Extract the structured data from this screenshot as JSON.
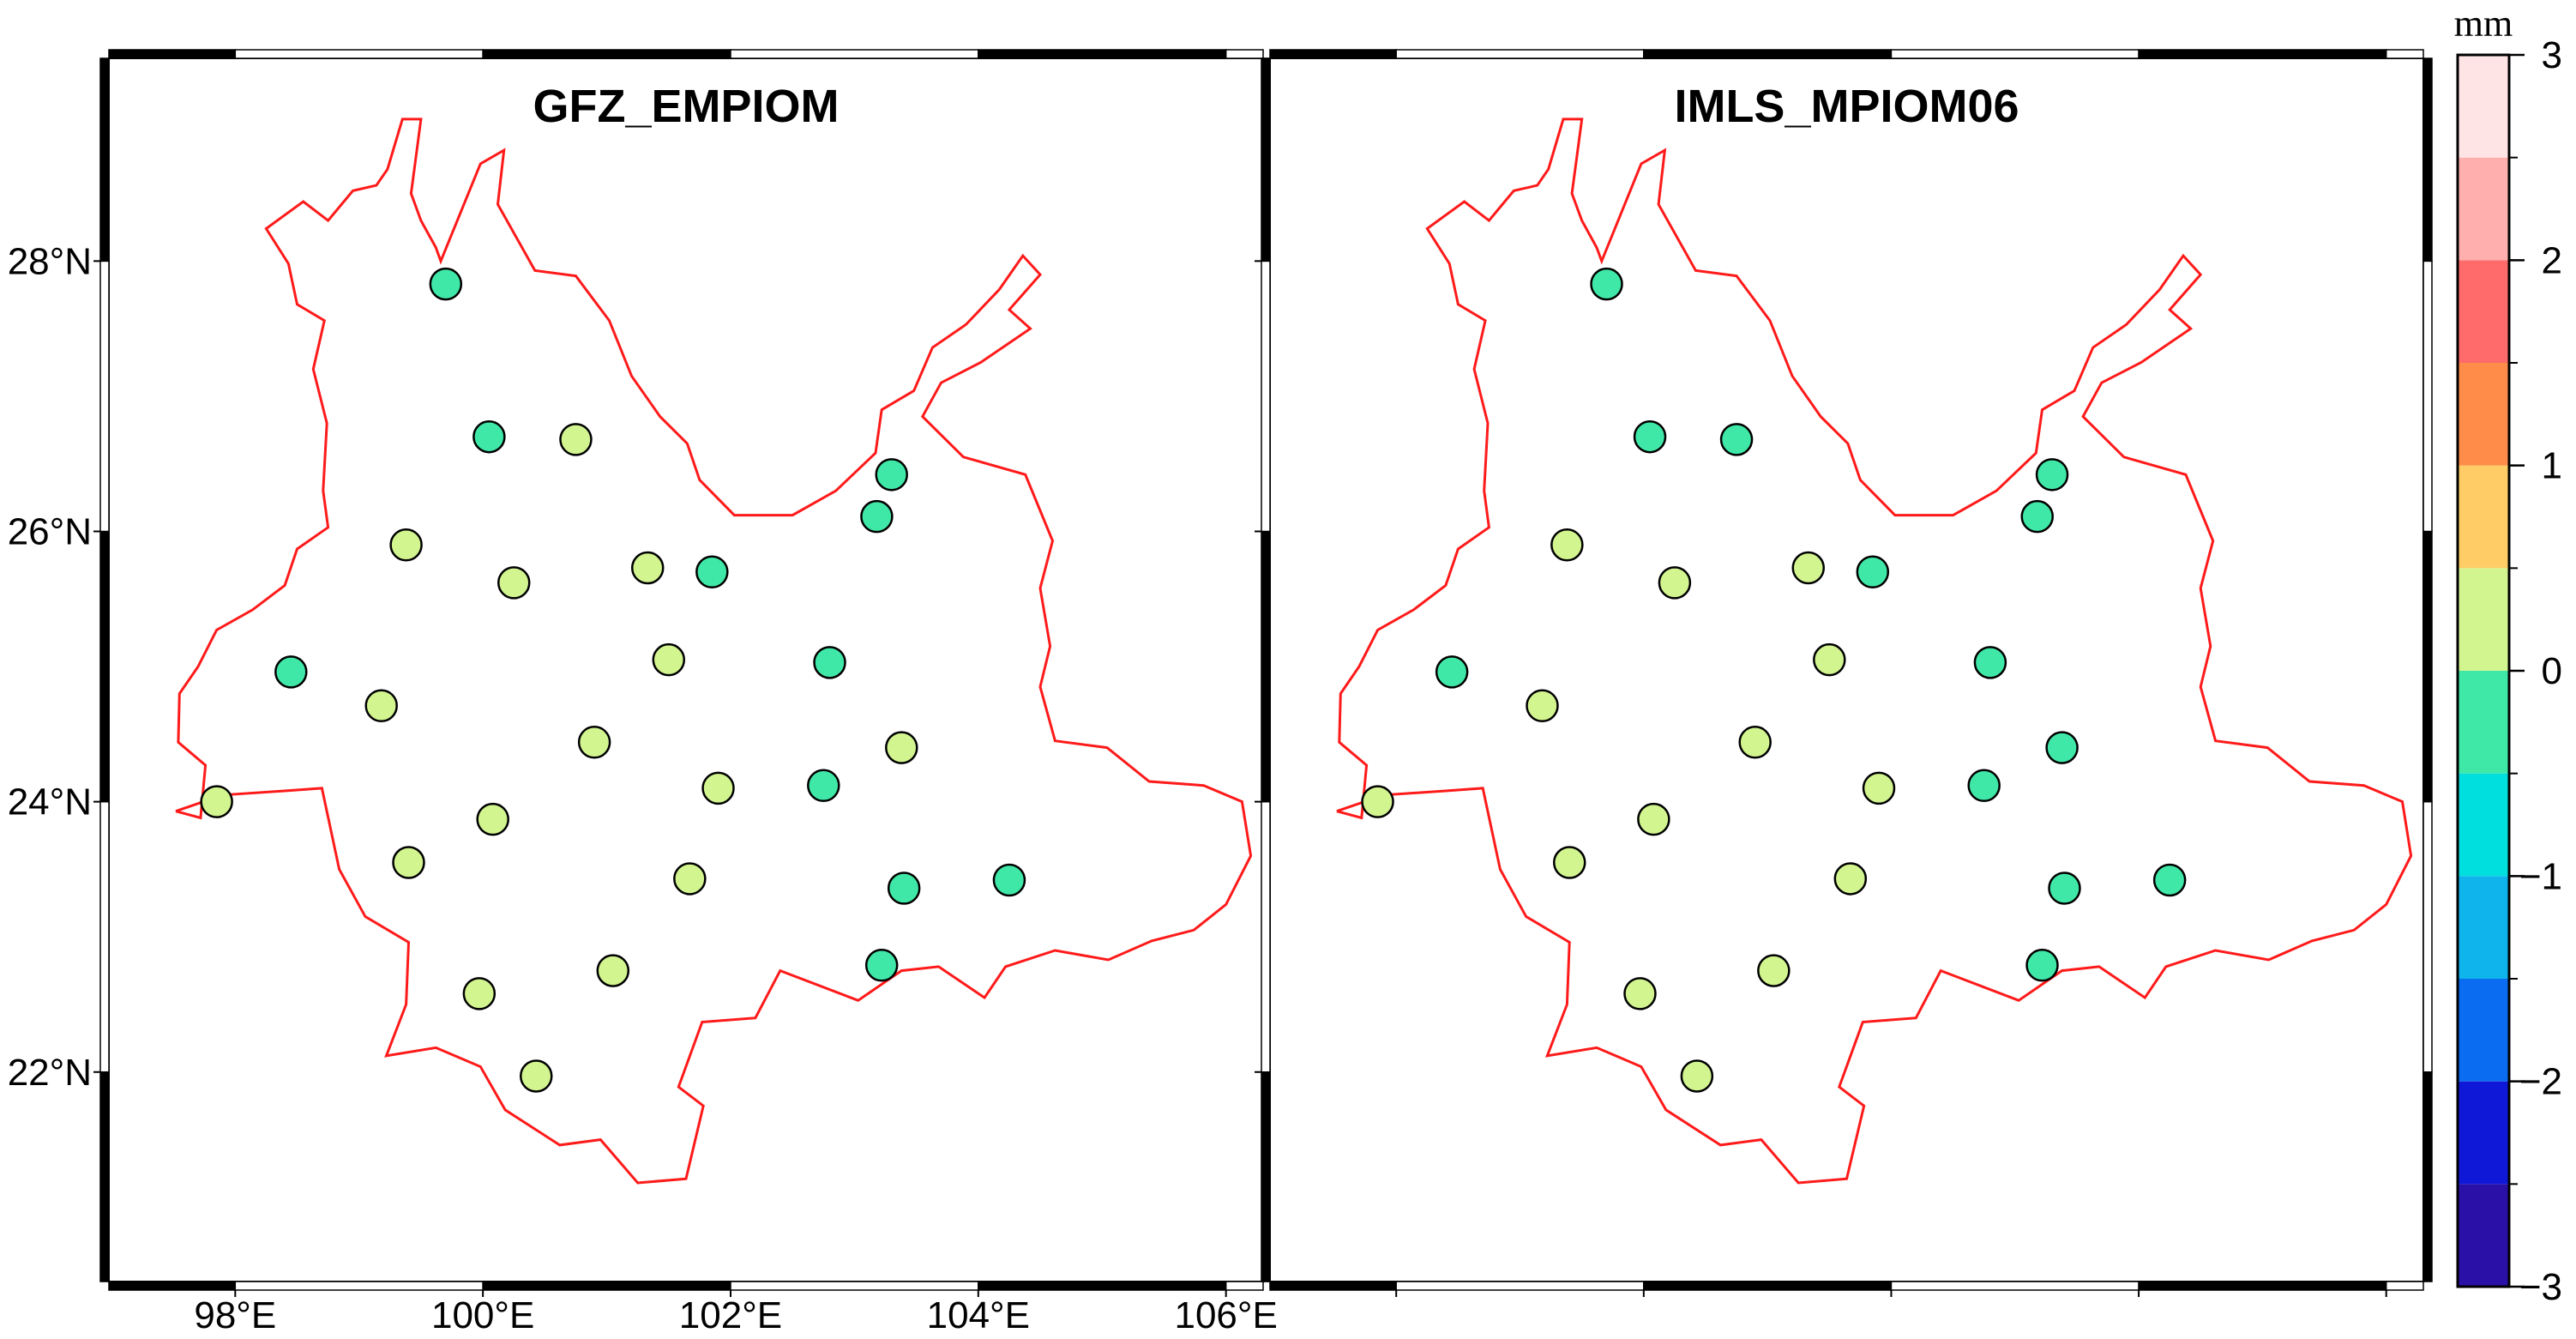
{
  "colors": {
    "border": "#ff1a1a",
    "frame_dark": "#000000",
    "frame_light": "#ffffff",
    "marker_outline": "#000000"
  },
  "maps": [
    {
      "id": "left",
      "title": "GFZ_EMPIOM",
      "show_lon_labels": true,
      "show_lat_labels": true
    },
    {
      "id": "right",
      "title": "IMLS_MPIOM06",
      "show_lon_labels": false,
      "show_lat_labels": false
    }
  ],
  "axes": {
    "lon_range": [
      96.98,
      106.3
    ],
    "lat_range": [
      20.45,
      29.5
    ],
    "lon_ticks": [
      {
        "value": 98,
        "label": "98°E"
      },
      {
        "value": 100,
        "label": "100°E"
      },
      {
        "value": 102,
        "label": "102°E"
      },
      {
        "value": 104,
        "label": "104°E"
      },
      {
        "value": 106,
        "label": "106°E"
      }
    ],
    "lat_ticks": [
      {
        "value": 22,
        "label": "22°N"
      },
      {
        "value": 24,
        "label": "24°N"
      },
      {
        "value": 26,
        "label": "26°N"
      },
      {
        "value": 28,
        "label": "28°N"
      }
    ]
  },
  "colorbar": {
    "unit": "mm",
    "range": [
      -3,
      3
    ],
    "labels": [
      {
        "value": 3,
        "text": "3"
      },
      {
        "value": 2,
        "text": "2"
      },
      {
        "value": 1,
        "text": "1"
      },
      {
        "value": 0,
        "text": "0"
      },
      {
        "value": -1,
        "text": "−1"
      },
      {
        "value": -2,
        "text": "−2"
      },
      {
        "value": -3,
        "text": "−3"
      }
    ],
    "bins": [
      {
        "from": -3.0,
        "to": -2.5,
        "color": "#2a10a6"
      },
      {
        "from": -2.5,
        "to": -2.0,
        "color": "#1018d8"
      },
      {
        "from": -2.0,
        "to": -1.5,
        "color": "#0a6cf0"
      },
      {
        "from": -1.5,
        "to": -1.0,
        "color": "#10b4ec"
      },
      {
        "from": -1.0,
        "to": -0.5,
        "color": "#00dede"
      },
      {
        "from": -0.5,
        "to": 0.0,
        "color": "#40e8a8"
      },
      {
        "from": 0.0,
        "to": 0.5,
        "color": "#d2f590"
      },
      {
        "from": 0.5,
        "to": 1.0,
        "color": "#ffcc66"
      },
      {
        "from": 1.0,
        "to": 1.5,
        "color": "#ff8c48"
      },
      {
        "from": 1.5,
        "to": 2.0,
        "color": "#ff6b6b"
      },
      {
        "from": 2.0,
        "to": 2.5,
        "color": "#ffb0ae"
      },
      {
        "from": 2.5,
        "to": 3.0,
        "color": "#ffe4e6"
      }
    ]
  },
  "chart_data": {
    "type": "scatter",
    "unit": "mm",
    "stations": [
      {
        "lon": 99.7,
        "lat": 27.83,
        "left": -0.3,
        "right": -0.3
      },
      {
        "lon": 100.05,
        "lat": 26.7,
        "left": -0.3,
        "right": -0.3
      },
      {
        "lon": 100.75,
        "lat": 26.68,
        "left": 0.3,
        "right": -0.3
      },
      {
        "lon": 103.3,
        "lat": 26.42,
        "left": -0.3,
        "right": -0.3
      },
      {
        "lon": 103.18,
        "lat": 26.11,
        "left": -0.3,
        "right": -0.3
      },
      {
        "lon": 99.38,
        "lat": 25.9,
        "left": 0.3,
        "right": 0.3
      },
      {
        "lon": 100.25,
        "lat": 25.62,
        "left": 0.3,
        "right": 0.3
      },
      {
        "lon": 101.33,
        "lat": 25.73,
        "left": 0.3,
        "right": 0.3
      },
      {
        "lon": 101.85,
        "lat": 25.7,
        "left": -0.3,
        "right": -0.3
      },
      {
        "lon": 98.45,
        "lat": 24.96,
        "left": -0.3,
        "right": -0.3
      },
      {
        "lon": 101.5,
        "lat": 25.05,
        "left": 0.3,
        "right": 0.3
      },
      {
        "lon": 102.8,
        "lat": 25.03,
        "left": -0.3,
        "right": -0.3
      },
      {
        "lon": 99.18,
        "lat": 24.71,
        "left": 0.3,
        "right": 0.3
      },
      {
        "lon": 100.9,
        "lat": 24.44,
        "left": 0.3,
        "right": 0.3
      },
      {
        "lon": 103.38,
        "lat": 24.4,
        "left": 0.3,
        "right": -0.3
      },
      {
        "lon": 97.85,
        "lat": 24.0,
        "left": 0.3,
        "right": 0.3
      },
      {
        "lon": 101.9,
        "lat": 24.1,
        "left": 0.3,
        "right": 0.3
      },
      {
        "lon": 102.75,
        "lat": 24.12,
        "left": -0.3,
        "right": -0.3
      },
      {
        "lon": 100.08,
        "lat": 23.87,
        "left": 0.3,
        "right": 0.3
      },
      {
        "lon": 99.4,
        "lat": 23.55,
        "left": 0.3,
        "right": 0.3
      },
      {
        "lon": 101.67,
        "lat": 23.43,
        "left": 0.3,
        "right": 0.3
      },
      {
        "lon": 103.4,
        "lat": 23.36,
        "left": -0.3,
        "right": -0.3
      },
      {
        "lon": 104.25,
        "lat": 23.42,
        "left": -0.3,
        "right": -0.3
      },
      {
        "lon": 101.05,
        "lat": 22.75,
        "left": 0.3,
        "right": 0.3
      },
      {
        "lon": 103.22,
        "lat": 22.79,
        "left": -0.3,
        "right": -0.3
      },
      {
        "lon": 99.97,
        "lat": 22.58,
        "left": 0.3,
        "right": 0.3
      },
      {
        "lon": 100.43,
        "lat": 21.97,
        "left": 0.3,
        "right": 0.3
      }
    ]
  },
  "province_outline": [
    [
      97.52,
      23.93
    ],
    [
      97.72,
      23.88
    ],
    [
      97.76,
      24.27
    ],
    [
      97.54,
      24.44
    ],
    [
      97.55,
      24.8
    ],
    [
      97.7,
      25.0
    ],
    [
      97.85,
      25.27
    ],
    [
      98.14,
      25.42
    ],
    [
      98.4,
      25.6
    ],
    [
      98.5,
      25.87
    ],
    [
      98.75,
      26.03
    ],
    [
      98.71,
      26.3
    ],
    [
      98.74,
      26.8
    ],
    [
      98.63,
      27.2
    ],
    [
      98.72,
      27.56
    ],
    [
      98.5,
      27.68
    ],
    [
      98.43,
      27.98
    ],
    [
      98.25,
      28.24
    ],
    [
      98.55,
      28.44
    ],
    [
      98.75,
      28.3
    ],
    [
      98.95,
      28.52
    ],
    [
      99.14,
      28.56
    ],
    [
      99.23,
      28.68
    ],
    [
      99.35,
      29.05
    ],
    [
      99.5,
      29.05
    ],
    [
      99.42,
      28.5
    ],
    [
      99.5,
      28.3
    ],
    [
      99.62,
      28.1
    ],
    [
      99.66,
      28.0
    ],
    [
      99.98,
      28.72
    ],
    [
      100.17,
      28.82
    ],
    [
      100.12,
      28.42
    ],
    [
      100.42,
      27.93
    ],
    [
      100.75,
      27.89
    ],
    [
      101.02,
      27.56
    ],
    [
      101.2,
      27.15
    ],
    [
      101.43,
      26.85
    ],
    [
      101.65,
      26.65
    ],
    [
      101.75,
      26.38
    ],
    [
      102.03,
      26.12
    ],
    [
      102.5,
      26.12
    ],
    [
      102.85,
      26.3
    ],
    [
      103.17,
      26.58
    ],
    [
      103.22,
      26.9
    ],
    [
      103.48,
      27.04
    ],
    [
      103.63,
      27.36
    ],
    [
      103.9,
      27.53
    ],
    [
      104.17,
      27.79
    ],
    [
      104.36,
      28.04
    ],
    [
      104.5,
      27.9
    ],
    [
      104.25,
      27.64
    ],
    [
      104.42,
      27.5
    ],
    [
      104.02,
      27.25
    ],
    [
      103.7,
      27.1
    ],
    [
      103.55,
      26.85
    ],
    [
      103.88,
      26.55
    ],
    [
      104.38,
      26.42
    ],
    [
      104.6,
      25.93
    ],
    [
      104.5,
      25.58
    ],
    [
      104.58,
      25.15
    ],
    [
      104.5,
      24.85
    ],
    [
      104.62,
      24.45
    ],
    [
      105.04,
      24.4
    ],
    [
      105.38,
      24.15
    ],
    [
      105.82,
      24.12
    ],
    [
      106.13,
      24.0
    ],
    [
      106.2,
      23.6
    ],
    [
      106.0,
      23.24
    ],
    [
      105.74,
      23.05
    ],
    [
      105.4,
      22.97
    ],
    [
      105.05,
      22.83
    ],
    [
      104.62,
      22.9
    ],
    [
      104.22,
      22.78
    ],
    [
      104.05,
      22.55
    ],
    [
      103.68,
      22.78
    ],
    [
      103.38,
      22.75
    ],
    [
      103.03,
      22.53
    ],
    [
      102.4,
      22.75
    ],
    [
      102.2,
      22.4
    ],
    [
      101.77,
      22.37
    ],
    [
      101.58,
      21.89
    ],
    [
      101.78,
      21.75
    ],
    [
      101.64,
      21.21
    ],
    [
      101.25,
      21.18
    ],
    [
      100.95,
      21.5
    ],
    [
      100.62,
      21.46
    ],
    [
      100.18,
      21.72
    ],
    [
      99.98,
      22.04
    ],
    [
      99.62,
      22.18
    ],
    [
      99.22,
      22.12
    ],
    [
      99.38,
      22.5
    ],
    [
      99.4,
      22.96
    ],
    [
      99.05,
      23.15
    ],
    [
      98.84,
      23.5
    ],
    [
      98.7,
      24.1
    ],
    [
      98.4,
      24.08
    ],
    [
      97.9,
      24.05
    ]
  ]
}
